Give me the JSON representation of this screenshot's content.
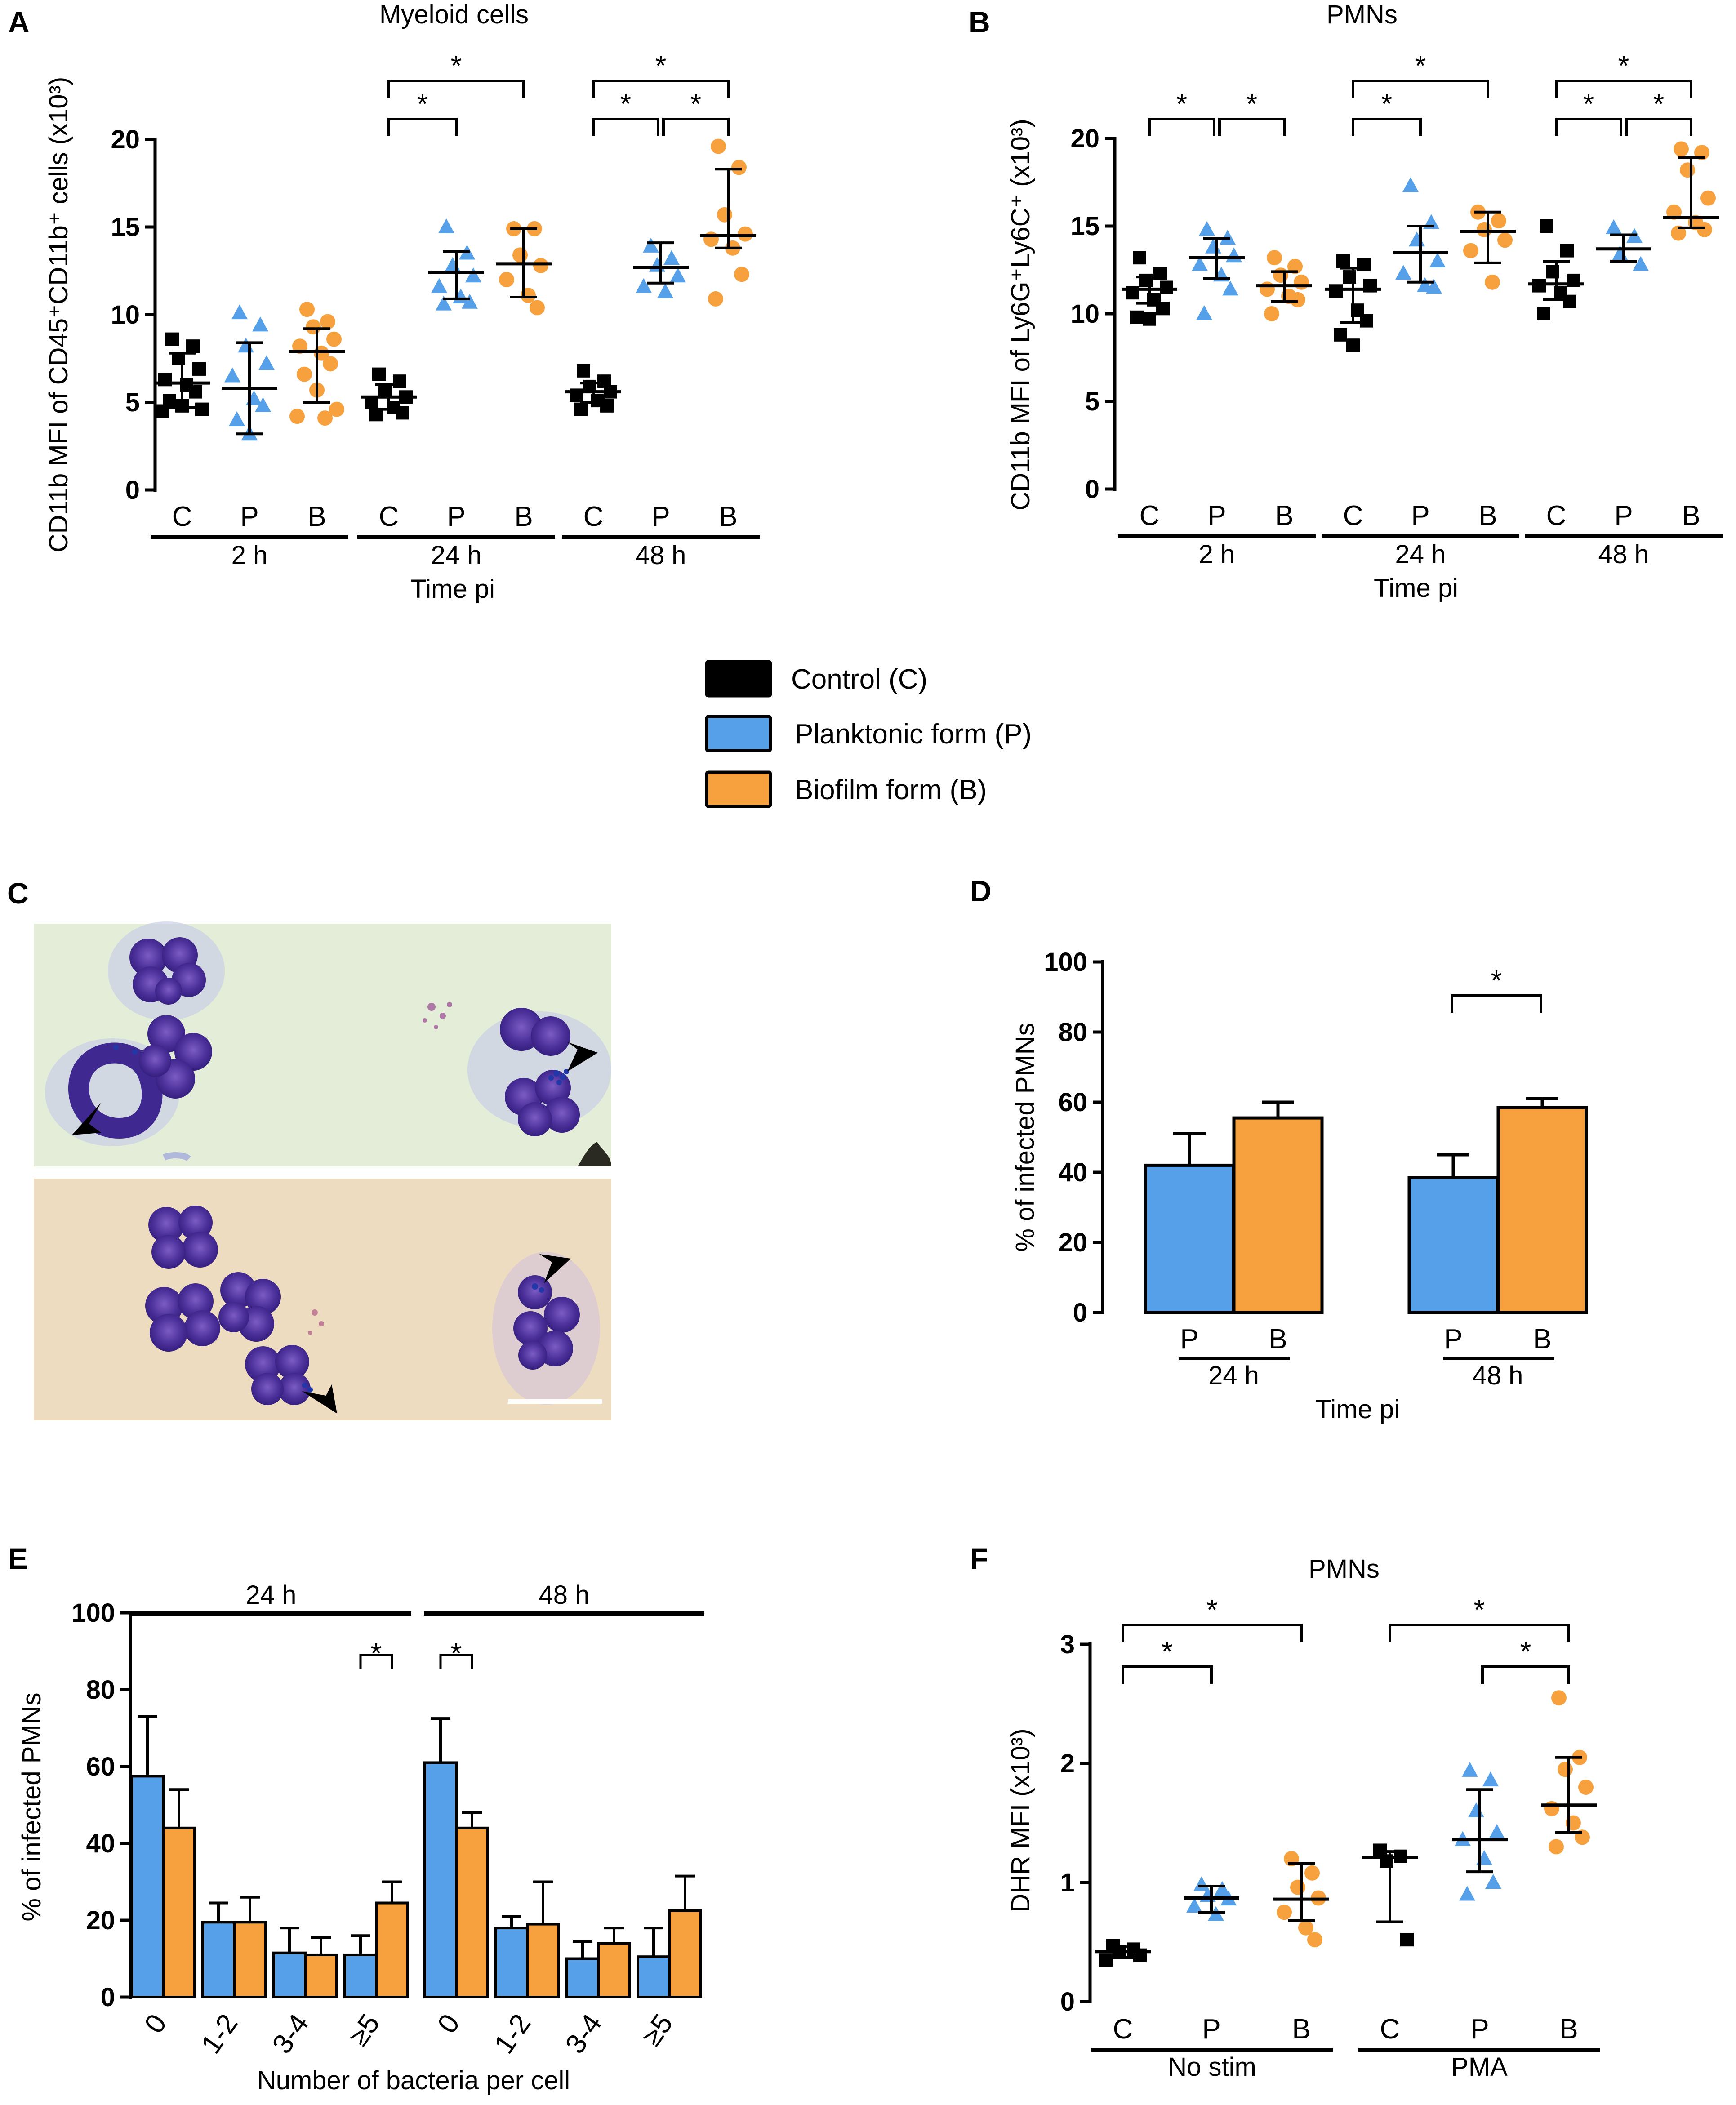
{
  "figure": {
    "legend": {
      "items": [
        {
          "label": "Control (C)",
          "color": "#000000"
        },
        {
          "label": "Planktonic form (P)",
          "color": "#55a0e8"
        },
        {
          "label": "Biofilm form (B)",
          "color": "#f7a13e"
        }
      ]
    },
    "panel_c": {
      "label": "C",
      "description": "Giemsa-stained PMNs with intracellular bacteria (arrowheads); scale bar"
    }
  },
  "colors": {
    "control": "#000000",
    "planktonic": "#55a0e8",
    "biofilm": "#f7a13e"
  },
  "chart_data": [
    {
      "id": "A",
      "type": "scatter",
      "title": "Myeloid cells",
      "ylabel": "CD11b MFI of CD45⁺CD11b⁺ cells (x10³)",
      "xlabel": "Time pi",
      "ylim": [
        0,
        20
      ],
      "yticks": [
        "0",
        "5",
        "10",
        "15",
        "20"
      ],
      "groups": [
        {
          "label": "2 h",
          "categories": [
            "C",
            "P",
            "B"
          ]
        },
        {
          "label": "24 h",
          "categories": [
            "C",
            "P",
            "B"
          ]
        },
        {
          "label": "48 h",
          "categories": [
            "C",
            "P",
            "B"
          ]
        }
      ],
      "series": [
        {
          "group": "2 h",
          "category": "C",
          "values": [
            8.6,
            8.2,
            7.5,
            6.9,
            6.3,
            6.0,
            5.6,
            5.1,
            4.8,
            4.6,
            4.5
          ],
          "mean": 6.1,
          "sd_low": 4.7,
          "sd_high": 7.8
        },
        {
          "group": "2 h",
          "category": "P",
          "values": [
            10.1,
            9.4,
            8.2,
            7.2,
            6.5,
            5.2,
            4.8,
            4.0,
            3.2
          ],
          "mean": 5.8,
          "sd_low": 3.2,
          "sd_high": 8.4
        },
        {
          "group": "2 h",
          "category": "B",
          "values": [
            10.3,
            9.6,
            9.3,
            8.6,
            8.2,
            7.8,
            7.2,
            6.6,
            5.7,
            4.6,
            4.2,
            4.1
          ],
          "mean": 7.9,
          "sd_low": 5.0,
          "sd_high": 9.2
        },
        {
          "group": "24 h",
          "category": "C",
          "values": [
            6.6,
            6.2,
            5.7,
            5.3,
            5.0,
            4.7,
            4.4,
            4.3
          ],
          "mean": 5.3,
          "sd_low": 4.6,
          "sd_high": 6.0
        },
        {
          "group": "24 h",
          "category": "P",
          "values": [
            15.0,
            13.5,
            12.8,
            12.2,
            11.6,
            11.0,
            10.7,
            10.6
          ],
          "mean": 12.4,
          "sd_low": 10.9,
          "sd_high": 13.6
        },
        {
          "group": "24 h",
          "category": "B",
          "values": [
            14.9,
            14.9,
            13.4,
            12.8,
            12.0,
            11.1,
            10.4
          ],
          "mean": 12.9,
          "sd_low": 11.0,
          "sd_high": 14.9
        },
        {
          "group": "48 h",
          "category": "C",
          "values": [
            6.8,
            6.2,
            5.9,
            5.6,
            5.4,
            5.1,
            4.8,
            4.6
          ],
          "mean": 5.6,
          "sd_low": 5.0,
          "sd_high": 6.1
        },
        {
          "group": "48 h",
          "category": "P",
          "values": [
            13.9,
            13.2,
            12.8,
            12.2,
            11.6,
            11.3
          ],
          "mean": 12.7,
          "sd_low": 11.8,
          "sd_high": 14.1
        },
        {
          "group": "48 h",
          "category": "B",
          "values": [
            19.6,
            18.4,
            15.7,
            14.6,
            14.3,
            13.8,
            12.3,
            10.9
          ],
          "mean": 14.5,
          "sd_low": 13.8,
          "sd_high": 18.3
        }
      ],
      "significance": [
        {
          "group": "24 h",
          "from": "C",
          "to": "P",
          "label": "*"
        },
        {
          "group": "24 h",
          "from": "C",
          "to": "B",
          "label": "*"
        },
        {
          "group": "48 h",
          "from": "C",
          "to": "P",
          "label": "*"
        },
        {
          "group": "48 h",
          "from": "P",
          "to": "B",
          "label": "*"
        },
        {
          "group": "48 h",
          "from": "C",
          "to": "B",
          "label": "*"
        }
      ]
    },
    {
      "id": "B",
      "type": "scatter",
      "title": "PMNs",
      "ylabel": "CD11b MFI of Ly6G⁺Ly6C⁺ (x10³)",
      "xlabel": "Time pi",
      "ylim": [
        0,
        20
      ],
      "yticks": [
        "0",
        "5",
        "10",
        "15",
        "20"
      ],
      "groups": [
        {
          "label": "2 h",
          "categories": [
            "C",
            "P",
            "B"
          ]
        },
        {
          "label": "24 h",
          "categories": [
            "C",
            "P",
            "B"
          ]
        },
        {
          "label": "48 h",
          "categories": [
            "C",
            "P",
            "B"
          ]
        }
      ],
      "series": [
        {
          "group": "2 h",
          "category": "C",
          "values": [
            13.2,
            12.3,
            11.9,
            11.5,
            11.2,
            10.8,
            10.3,
            9.8,
            9.7
          ],
          "mean": 11.4,
          "sd_low": 10.6,
          "sd_high": 12.1
        },
        {
          "group": "2 h",
          "category": "P",
          "values": [
            14.8,
            14.3,
            13.8,
            13.3,
            12.8,
            12.2,
            11.4,
            10.0
          ],
          "mean": 13.2,
          "sd_low": 12.0,
          "sd_high": 14.3
        },
        {
          "group": "2 h",
          "category": "B",
          "values": [
            13.2,
            12.7,
            12.2,
            11.8,
            11.4,
            11.0,
            10.8,
            10.0
          ],
          "mean": 11.6,
          "sd_low": 10.7,
          "sd_high": 12.4
        },
        {
          "group": "24 h",
          "category": "C",
          "values": [
            13.0,
            12.8,
            12.1,
            11.6,
            11.3,
            10.2,
            9.6,
            8.8,
            8.2
          ],
          "mean": 11.4,
          "sd_low": 9.5,
          "sd_high": 12.6
        },
        {
          "group": "24 h",
          "category": "P",
          "values": [
            17.3,
            15.2,
            14.2,
            13.0,
            12.3,
            11.6,
            11.5
          ],
          "mean": 13.5,
          "sd_low": 11.8,
          "sd_high": 15.0
        },
        {
          "group": "24 h",
          "category": "B",
          "values": [
            15.8,
            15.3,
            14.8,
            14.2,
            13.6,
            11.8
          ],
          "mean": 14.7,
          "sd_low": 12.9,
          "sd_high": 15.8
        },
        {
          "group": "48 h",
          "category": "C",
          "values": [
            15.0,
            13.6,
            12.4,
            11.9,
            11.6,
            11.2,
            10.7,
            10.0
          ],
          "mean": 11.7,
          "sd_low": 10.8,
          "sd_high": 13.0
        },
        {
          "group": "48 h",
          "category": "P",
          "values": [
            14.9,
            14.4,
            13.4,
            12.8
          ],
          "mean": 13.7,
          "sd_low": 13.0,
          "sd_high": 14.5
        },
        {
          "group": "48 h",
          "category": "B",
          "values": [
            19.4,
            19.2,
            18.2,
            16.6,
            15.8,
            15.2,
            14.8,
            14.6
          ],
          "mean": 15.5,
          "sd_low": 14.9,
          "sd_high": 18.9
        }
      ],
      "significance": [
        {
          "group": "2 h",
          "from": "C",
          "to": "P",
          "label": "*"
        },
        {
          "group": "2 h",
          "from": "P",
          "to": "B",
          "label": "*"
        },
        {
          "group": "24 h",
          "from": "C",
          "to": "P",
          "label": "*"
        },
        {
          "group": "24 h",
          "from": "C",
          "to": "B",
          "label": "*"
        },
        {
          "group": "48 h",
          "from": "C",
          "to": "P",
          "label": "*"
        },
        {
          "group": "48 h",
          "from": "P",
          "to": "B",
          "label": "*"
        },
        {
          "group": "48 h",
          "from": "C",
          "to": "B",
          "label": "*"
        }
      ]
    },
    {
      "id": "D",
      "type": "bar",
      "title": "",
      "ylabel": "% of infected PMNs",
      "xlabel": "Time pi",
      "ylim": [
        0,
        100
      ],
      "yticks": [
        "0",
        "20",
        "40",
        "60",
        "80",
        "100"
      ],
      "groups": [
        {
          "label": "24 h",
          "categories": [
            "P",
            "B"
          ]
        },
        {
          "label": "48 h",
          "categories": [
            "P",
            "B"
          ]
        }
      ],
      "series": [
        {
          "group": "24 h",
          "category": "P",
          "value": 42.0,
          "error": 9.0
        },
        {
          "group": "24 h",
          "category": "B",
          "value": 55.5,
          "error": 4.5
        },
        {
          "group": "48 h",
          "category": "P",
          "value": 38.5,
          "error": 6.5
        },
        {
          "group": "48 h",
          "category": "B",
          "value": 58.5,
          "error": 2.5
        }
      ],
      "significance": [
        {
          "group": "48 h",
          "from": "P",
          "to": "B",
          "label": "*"
        }
      ]
    },
    {
      "id": "E",
      "type": "bar",
      "title": "",
      "ylabel": "% of infected PMNs",
      "xlabel": "Number of bacteria per cell",
      "ylim": [
        0,
        100
      ],
      "yticks": [
        "0",
        "20",
        "40",
        "60",
        "80",
        "100"
      ],
      "groups": [
        {
          "label": "24 h",
          "categories": [
            "0",
            "1-2",
            "3-4",
            "≥5"
          ]
        },
        {
          "label": "48 h",
          "categories": [
            "0",
            "1-2",
            "3-4",
            "≥5"
          ]
        }
      ],
      "series": [
        {
          "name": "Planktonic form (P)",
          "group": "24 h",
          "values": [
            57.5,
            19.5,
            11.5,
            11.0
          ],
          "errors": [
            15.5,
            5.0,
            6.5,
            5.0
          ]
        },
        {
          "name": "Biofilm form (B)",
          "group": "24 h",
          "values": [
            44.0,
            19.5,
            11.0,
            24.5
          ],
          "errors": [
            10.0,
            6.5,
            4.5,
            5.5
          ]
        },
        {
          "name": "Planktonic form (P)",
          "group": "48 h",
          "values": [
            61.0,
            18.0,
            10.0,
            10.5
          ],
          "errors": [
            11.5,
            3.0,
            4.5,
            7.5
          ]
        },
        {
          "name": "Biofilm form (B)",
          "group": "48 h",
          "values": [
            44.0,
            19.0,
            14.0,
            22.5
          ],
          "errors": [
            4.0,
            11.0,
            4.0,
            9.0
          ]
        }
      ],
      "significance": [
        {
          "group": "24 h",
          "category": "≥5",
          "label": "*"
        },
        {
          "group": "48 h",
          "category": "0",
          "label": "*"
        }
      ]
    },
    {
      "id": "F",
      "type": "scatter",
      "title": "PMNs",
      "ylabel": "DHR MFI (x10³)",
      "xlabel": "",
      "ylim": [
        0,
        3
      ],
      "yticks": [
        "0",
        "1",
        "2",
        "3"
      ],
      "groups": [
        {
          "label": "No stim",
          "categories": [
            "C",
            "P",
            "B"
          ]
        },
        {
          "label": "PMA",
          "categories": [
            "C",
            "P",
            "B"
          ]
        }
      ],
      "series": [
        {
          "group": "No stim",
          "category": "C",
          "values": [
            0.47,
            0.44,
            0.42,
            0.39,
            0.35
          ],
          "mean": 0.42,
          "sd_low": 0.37,
          "sd_high": 0.46
        },
        {
          "group": "No stim",
          "category": "P",
          "values": [
            0.98,
            0.94,
            0.89,
            0.86,
            0.8,
            0.73
          ],
          "mean": 0.87,
          "sd_low": 0.75,
          "sd_high": 0.97
        },
        {
          "group": "No stim",
          "category": "B",
          "values": [
            1.2,
            1.08,
            0.96,
            0.87,
            0.75,
            0.62,
            0.52
          ],
          "mean": 0.86,
          "sd_low": 0.68,
          "sd_high": 1.16
        },
        {
          "group": "PMA",
          "category": "C",
          "values": [
            1.27,
            1.22,
            1.18,
            0.52
          ],
          "mean": 1.21,
          "sd_low": 0.67,
          "sd_high": 1.26
        },
        {
          "group": "PMA",
          "category": "P",
          "values": [
            1.94,
            1.86,
            1.6,
            1.42,
            1.36,
            1.2,
            1.0,
            0.9
          ],
          "mean": 1.36,
          "sd_low": 1.09,
          "sd_high": 1.78
        },
        {
          "group": "PMA",
          "category": "B",
          "values": [
            2.55,
            2.05,
            1.95,
            1.8,
            1.62,
            1.5,
            1.38,
            1.3
          ],
          "mean": 1.65,
          "sd_low": 1.42,
          "sd_high": 2.05
        }
      ],
      "significance": [
        {
          "group": "No stim",
          "from": "C",
          "to": "P",
          "label": "*"
        },
        {
          "group": "No stim",
          "from": "C",
          "to": "B",
          "label": "*"
        },
        {
          "group": "PMA",
          "from": "C",
          "to": "B",
          "label": "*"
        },
        {
          "group": "PMA",
          "from": "P",
          "to": "B",
          "label": "*"
        }
      ]
    }
  ]
}
